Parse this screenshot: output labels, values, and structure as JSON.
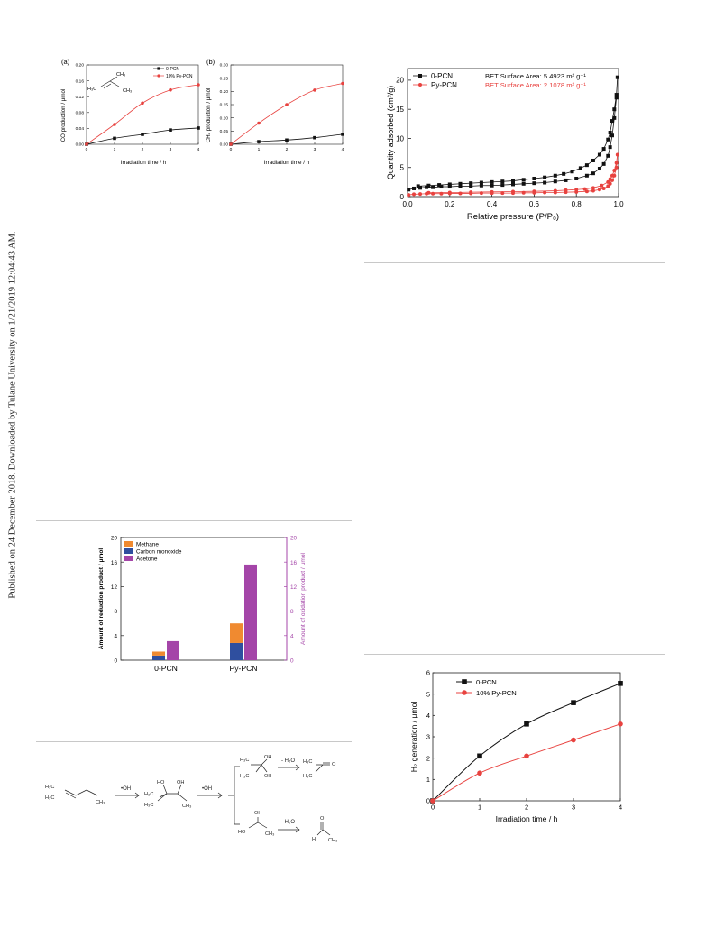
{
  "side_note": "Published on 24 December 2018. Downloaded by Tulane University on 1/21/2019 12:04:43 AM.",
  "fig_co_ch4": {
    "panel_a": {
      "label": "(a)",
      "ylabel": "CO production / μmol",
      "xlabel": "Irradiation time / h",
      "molecule": {
        "top": "CH₃",
        "left": "H₃C",
        "right": "CH₃"
      }
    },
    "panel_b": {
      "label": "(b)",
      "ylabel": "CH₄ production / μmol",
      "xlabel": "Irradiation time / h"
    }
  },
  "fig_bet": {},
  "fig_products": {},
  "scheme": {
    "reagent_1": "•OH",
    "reagent_2": "•OH",
    "loss_upper": "- H₂O",
    "loss_lower": "- H₂O",
    "labels": {
      "start_a": "H₃C",
      "start_b": "H₃C",
      "start_c": "CH₃",
      "mid_ho": "HO",
      "mid_oh": "OH",
      "mid_h3c_a": "H₃C",
      "mid_h3c_b": "H₃C",
      "mid_ch3": "CH₃",
      "up_h3c": "H₃C",
      "up_oh": "OH",
      "up_oh2": "OH",
      "up_h3c_b": "H₃C",
      "ac_h3c_a": "H₃C",
      "ac_o": "O",
      "ac_h3c_b": "H₃C",
      "lo_oh": "OH",
      "lo_ho": "HO",
      "lo_ch3": "CH₃",
      "ald_o": "O",
      "ald_h": "H",
      "ald_ch3": "CH₃"
    }
  },
  "fig_h2": {},
  "chart_data": [
    {
      "id": "co",
      "type": "line",
      "title": "",
      "xlabel": "Irradiation time / h",
      "ylabel": "CO production / μmol",
      "x": [
        0,
        1,
        2,
        3,
        4
      ],
      "xlim": [
        0,
        4
      ],
      "ylim": [
        0,
        0.2
      ],
      "yticks": [
        "0.00",
        "0.04",
        "0.08",
        "0.12",
        "0.16",
        "0.20"
      ],
      "xticks": [
        "0",
        "1",
        "2",
        "3",
        "4"
      ],
      "legend_position": "top-right",
      "series": [
        {
          "name": "0-PCN",
          "color": "#111111",
          "marker": "square",
          "values": [
            0.0,
            0.015,
            0.025,
            0.036,
            0.041
          ]
        },
        {
          "name": "10% Py-PCN",
          "color": "#e8423f",
          "marker": "circle",
          "values": [
            0.0,
            0.05,
            0.104,
            0.137,
            0.15
          ]
        }
      ]
    },
    {
      "id": "ch4",
      "type": "line",
      "title": "",
      "xlabel": "Irradiation time / h",
      "ylabel": "CH₄ production / μmol",
      "x": [
        0,
        1,
        2,
        3,
        4
      ],
      "xlim": [
        0,
        4
      ],
      "ylim": [
        0,
        0.3
      ],
      "yticks": [
        "0.00",
        "0.05",
        "0.10",
        "0.15",
        "0.20",
        "0.25",
        "0.30"
      ],
      "xticks": [
        "0",
        "1",
        "2",
        "3",
        "4"
      ],
      "series": [
        {
          "name": "",
          "color": "#111111",
          "marker": "square",
          "values": [
            0.0,
            0.01,
            0.016,
            0.025,
            0.038
          ]
        },
        {
          "name": "",
          "color": "#e8423f",
          "marker": "circle",
          "values": [
            0.0,
            0.08,
            0.15,
            0.205,
            0.23
          ]
        }
      ]
    },
    {
      "id": "bet",
      "type": "scatter",
      "title": "",
      "xlabel": "Relative pressure (P/P₀)",
      "ylabel": "Quantity adsorbed (cm³/g)",
      "xlim": [
        0,
        1
      ],
      "ylim": [
        0,
        22
      ],
      "xticks": [
        "0.0",
        "0.2",
        "0.4",
        "0.6",
        "0.8",
        "1.0"
      ],
      "yticks": [
        "0",
        "5",
        "10",
        "15",
        "20"
      ],
      "legend_position": "top-left",
      "series": [
        {
          "name": "0-PCN",
          "annotation": "BET Surface Area: 5.4923 m² g⁻¹",
          "color": "#111111",
          "marker": "square",
          "x": [
            0.005,
            0.03,
            0.06,
            0.09,
            0.12,
            0.16,
            0.2,
            0.25,
            0.3,
            0.35,
            0.4,
            0.45,
            0.5,
            0.55,
            0.6,
            0.65,
            0.7,
            0.75,
            0.8,
            0.85,
            0.88,
            0.91,
            0.93,
            0.95,
            0.96,
            0.97,
            0.98,
            0.99,
            0.995,
            0.99,
            0.98,
            0.97,
            0.96,
            0.95,
            0.93,
            0.91,
            0.88,
            0.85,
            0.82,
            0.78,
            0.74,
            0.7,
            0.65,
            0.6,
            0.55,
            0.5,
            0.45,
            0.4,
            0.35,
            0.3,
            0.25,
            0.2,
            0.15,
            0.1,
            0.05
          ],
          "values": [
            1.2,
            1.4,
            1.5,
            1.6,
            1.6,
            1.7,
            1.7,
            1.8,
            1.8,
            1.9,
            1.9,
            2.0,
            2.1,
            2.2,
            2.3,
            2.4,
            2.6,
            2.8,
            3.1,
            3.6,
            4.0,
            4.8,
            5.6,
            7.0,
            8.5,
            10.5,
            13.5,
            17.0,
            20.5,
            17.5,
            15.0,
            13.0,
            11.0,
            9.8,
            8.2,
            7.2,
            6.2,
            5.4,
            4.9,
            4.3,
            3.9,
            3.6,
            3.3,
            3.1,
            2.9,
            2.7,
            2.6,
            2.5,
            2.4,
            2.3,
            2.2,
            2.1,
            2.0,
            1.9,
            1.8
          ]
        },
        {
          "name": "Py-PCN",
          "annotation": "BET Surface Area: 2.1078 m² g⁻¹",
          "color": "#e8423f",
          "marker": "circle",
          "x": [
            0.005,
            0.03,
            0.06,
            0.09,
            0.12,
            0.16,
            0.2,
            0.25,
            0.3,
            0.35,
            0.4,
            0.45,
            0.5,
            0.55,
            0.6,
            0.65,
            0.7,
            0.75,
            0.8,
            0.85,
            0.88,
            0.91,
            0.93,
            0.95,
            0.96,
            0.97,
            0.98,
            0.99,
            0.995,
            0.99,
            0.98,
            0.97,
            0.96,
            0.95,
            0.92,
            0.88,
            0.84,
            0.8,
            0.75,
            0.7,
            0.6,
            0.5,
            0.4,
            0.3,
            0.2,
            0.1
          ],
          "values": [
            0.3,
            0.4,
            0.45,
            0.5,
            0.5,
            0.5,
            0.55,
            0.55,
            0.55,
            0.6,
            0.6,
            0.6,
            0.6,
            0.65,
            0.65,
            0.7,
            0.7,
            0.75,
            0.8,
            0.9,
            1.0,
            1.2,
            1.4,
            1.8,
            2.2,
            2.8,
            3.6,
            5.0,
            7.2,
            5.8,
            4.5,
            3.6,
            3.0,
            2.5,
            1.9,
            1.5,
            1.3,
            1.2,
            1.1,
            1.0,
            0.9,
            0.85,
            0.8,
            0.75,
            0.7,
            0.65
          ]
        }
      ]
    },
    {
      "id": "products",
      "type": "bar",
      "title": "",
      "categories": [
        "0-PCN",
        "Py-PCN"
      ],
      "ylabel": "Amount of reduction product / μmol",
      "y2label": "Amount of oxidation product / μmol",
      "ylim": [
        0,
        20
      ],
      "y2lim": [
        0,
        20
      ],
      "yticks": [
        "0",
        "4",
        "8",
        "12",
        "16",
        "20"
      ],
      "y2ticks": [
        "0",
        "4",
        "8",
        "12",
        "16",
        "20"
      ],
      "legend_position": "top-left",
      "y2color": "#a445a8",
      "stacked_series": [
        {
          "name": "Carbon monoxide",
          "color": "#2f4f9f",
          "values": [
            0.75,
            2.8
          ]
        },
        {
          "name": "Methane",
          "color": "#f08a30",
          "values": [
            0.65,
            3.2
          ]
        }
      ],
      "secondary_series": [
        {
          "name": "Acetone",
          "color": "#a445a8",
          "values": [
            3.1,
            15.6
          ]
        }
      ],
      "legend_order": [
        "Methane",
        "Carbon monoxide",
        "Acetone"
      ]
    },
    {
      "id": "h2",
      "type": "line",
      "title": "",
      "xlabel": "Irradiation time / h",
      "ylabel": "H₂ generation / μmol",
      "x": [
        0,
        1,
        2,
        3,
        4
      ],
      "xlim": [
        0,
        4
      ],
      "ylim": [
        0,
        6
      ],
      "xticks": [
        "0",
        "1",
        "2",
        "3",
        "4"
      ],
      "yticks": [
        "0",
        "1",
        "2",
        "3",
        "4",
        "5",
        "6"
      ],
      "legend_position": "top-left",
      "series": [
        {
          "name": "0-PCN",
          "color": "#111111",
          "marker": "square",
          "values": [
            0.0,
            2.1,
            3.6,
            4.6,
            5.5
          ]
        },
        {
          "name": "10% Py-PCN",
          "color": "#e8423f",
          "marker": "circle",
          "values": [
            0.0,
            1.3,
            2.1,
            2.85,
            3.6
          ]
        }
      ]
    }
  ]
}
